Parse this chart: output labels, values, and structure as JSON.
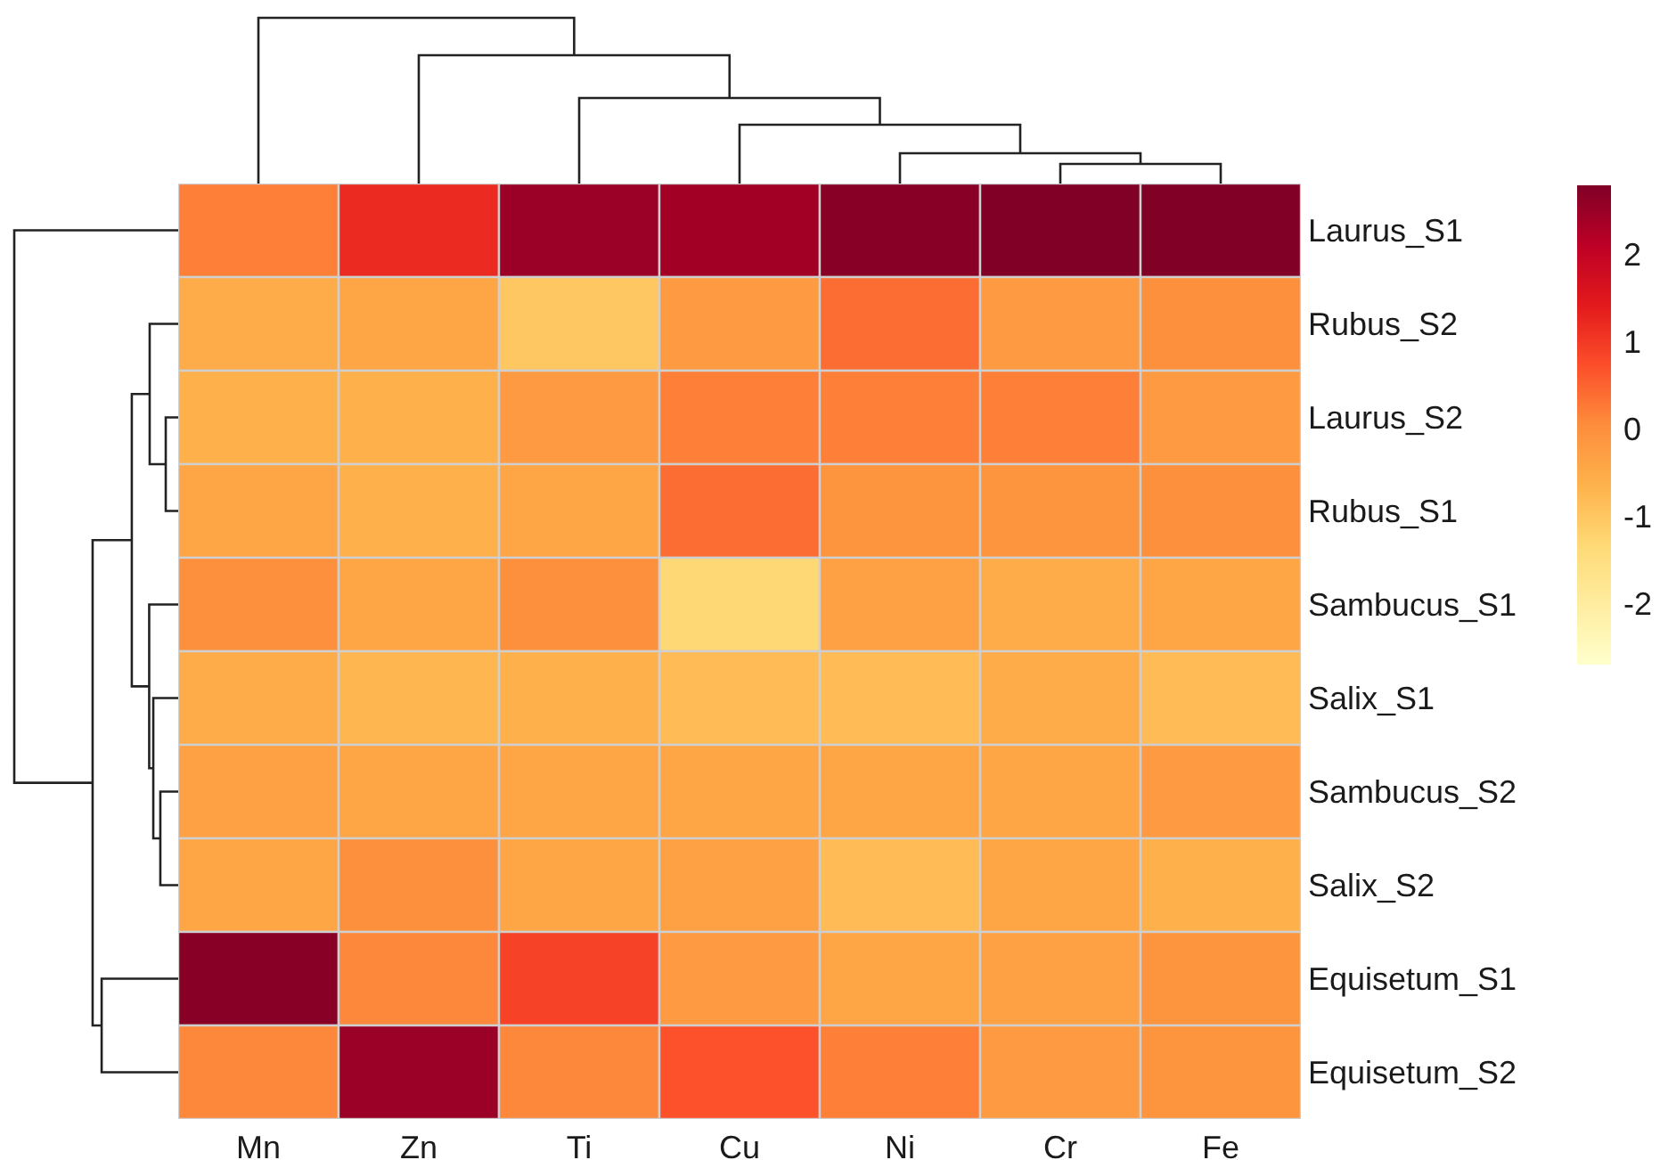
{
  "chart_data": {
    "type": "heatmap",
    "categories": [
      "Mn",
      "Zn",
      "Ti",
      "Cu",
      "Ni",
      "Cr",
      "Fe"
    ],
    "y_categories": [
      "Laurus_S1",
      "Rubus_S2",
      "Laurus_S2",
      "Rubus_S1",
      "Sambucus_S1",
      "Salix_S1",
      "Sambucus_S2",
      "Salix_S2",
      "Equisetum_S1",
      "Equisetum_S2"
    ],
    "cells": [
      [
        0.2,
        1.2,
        2.5,
        2.4,
        2.7,
        2.8,
        2.8
      ],
      [
        -0.5,
        -0.4,
        -1.0,
        -0.2,
        0.4,
        -0.2,
        0.0
      ],
      [
        -0.6,
        -0.6,
        -0.2,
        0.2,
        0.2,
        0.2,
        -0.2
      ],
      [
        -0.4,
        -0.6,
        -0.4,
        0.4,
        -0.1,
        -0.1,
        0.0
      ],
      [
        0.0,
        -0.4,
        0.0,
        -1.3,
        -0.3,
        -0.5,
        -0.4
      ],
      [
        -0.5,
        -0.7,
        -0.6,
        -0.8,
        -0.8,
        -0.5,
        -0.8
      ],
      [
        -0.3,
        -0.4,
        -0.4,
        -0.4,
        -0.4,
        -0.4,
        -0.2
      ],
      [
        -0.4,
        0.0,
        -0.4,
        -0.3,
        -0.8,
        -0.4,
        -0.6
      ],
      [
        2.7,
        0.1,
        0.9,
        -0.2,
        -0.4,
        -0.3,
        -0.1
      ],
      [
        0.1,
        2.5,
        0.1,
        0.7,
        0.2,
        -0.2,
        -0.1
      ]
    ],
    "clim": [
      -2.7,
      2.8
    ],
    "cticks": [
      -2,
      -1,
      0,
      1,
      2
    ]
  }
}
